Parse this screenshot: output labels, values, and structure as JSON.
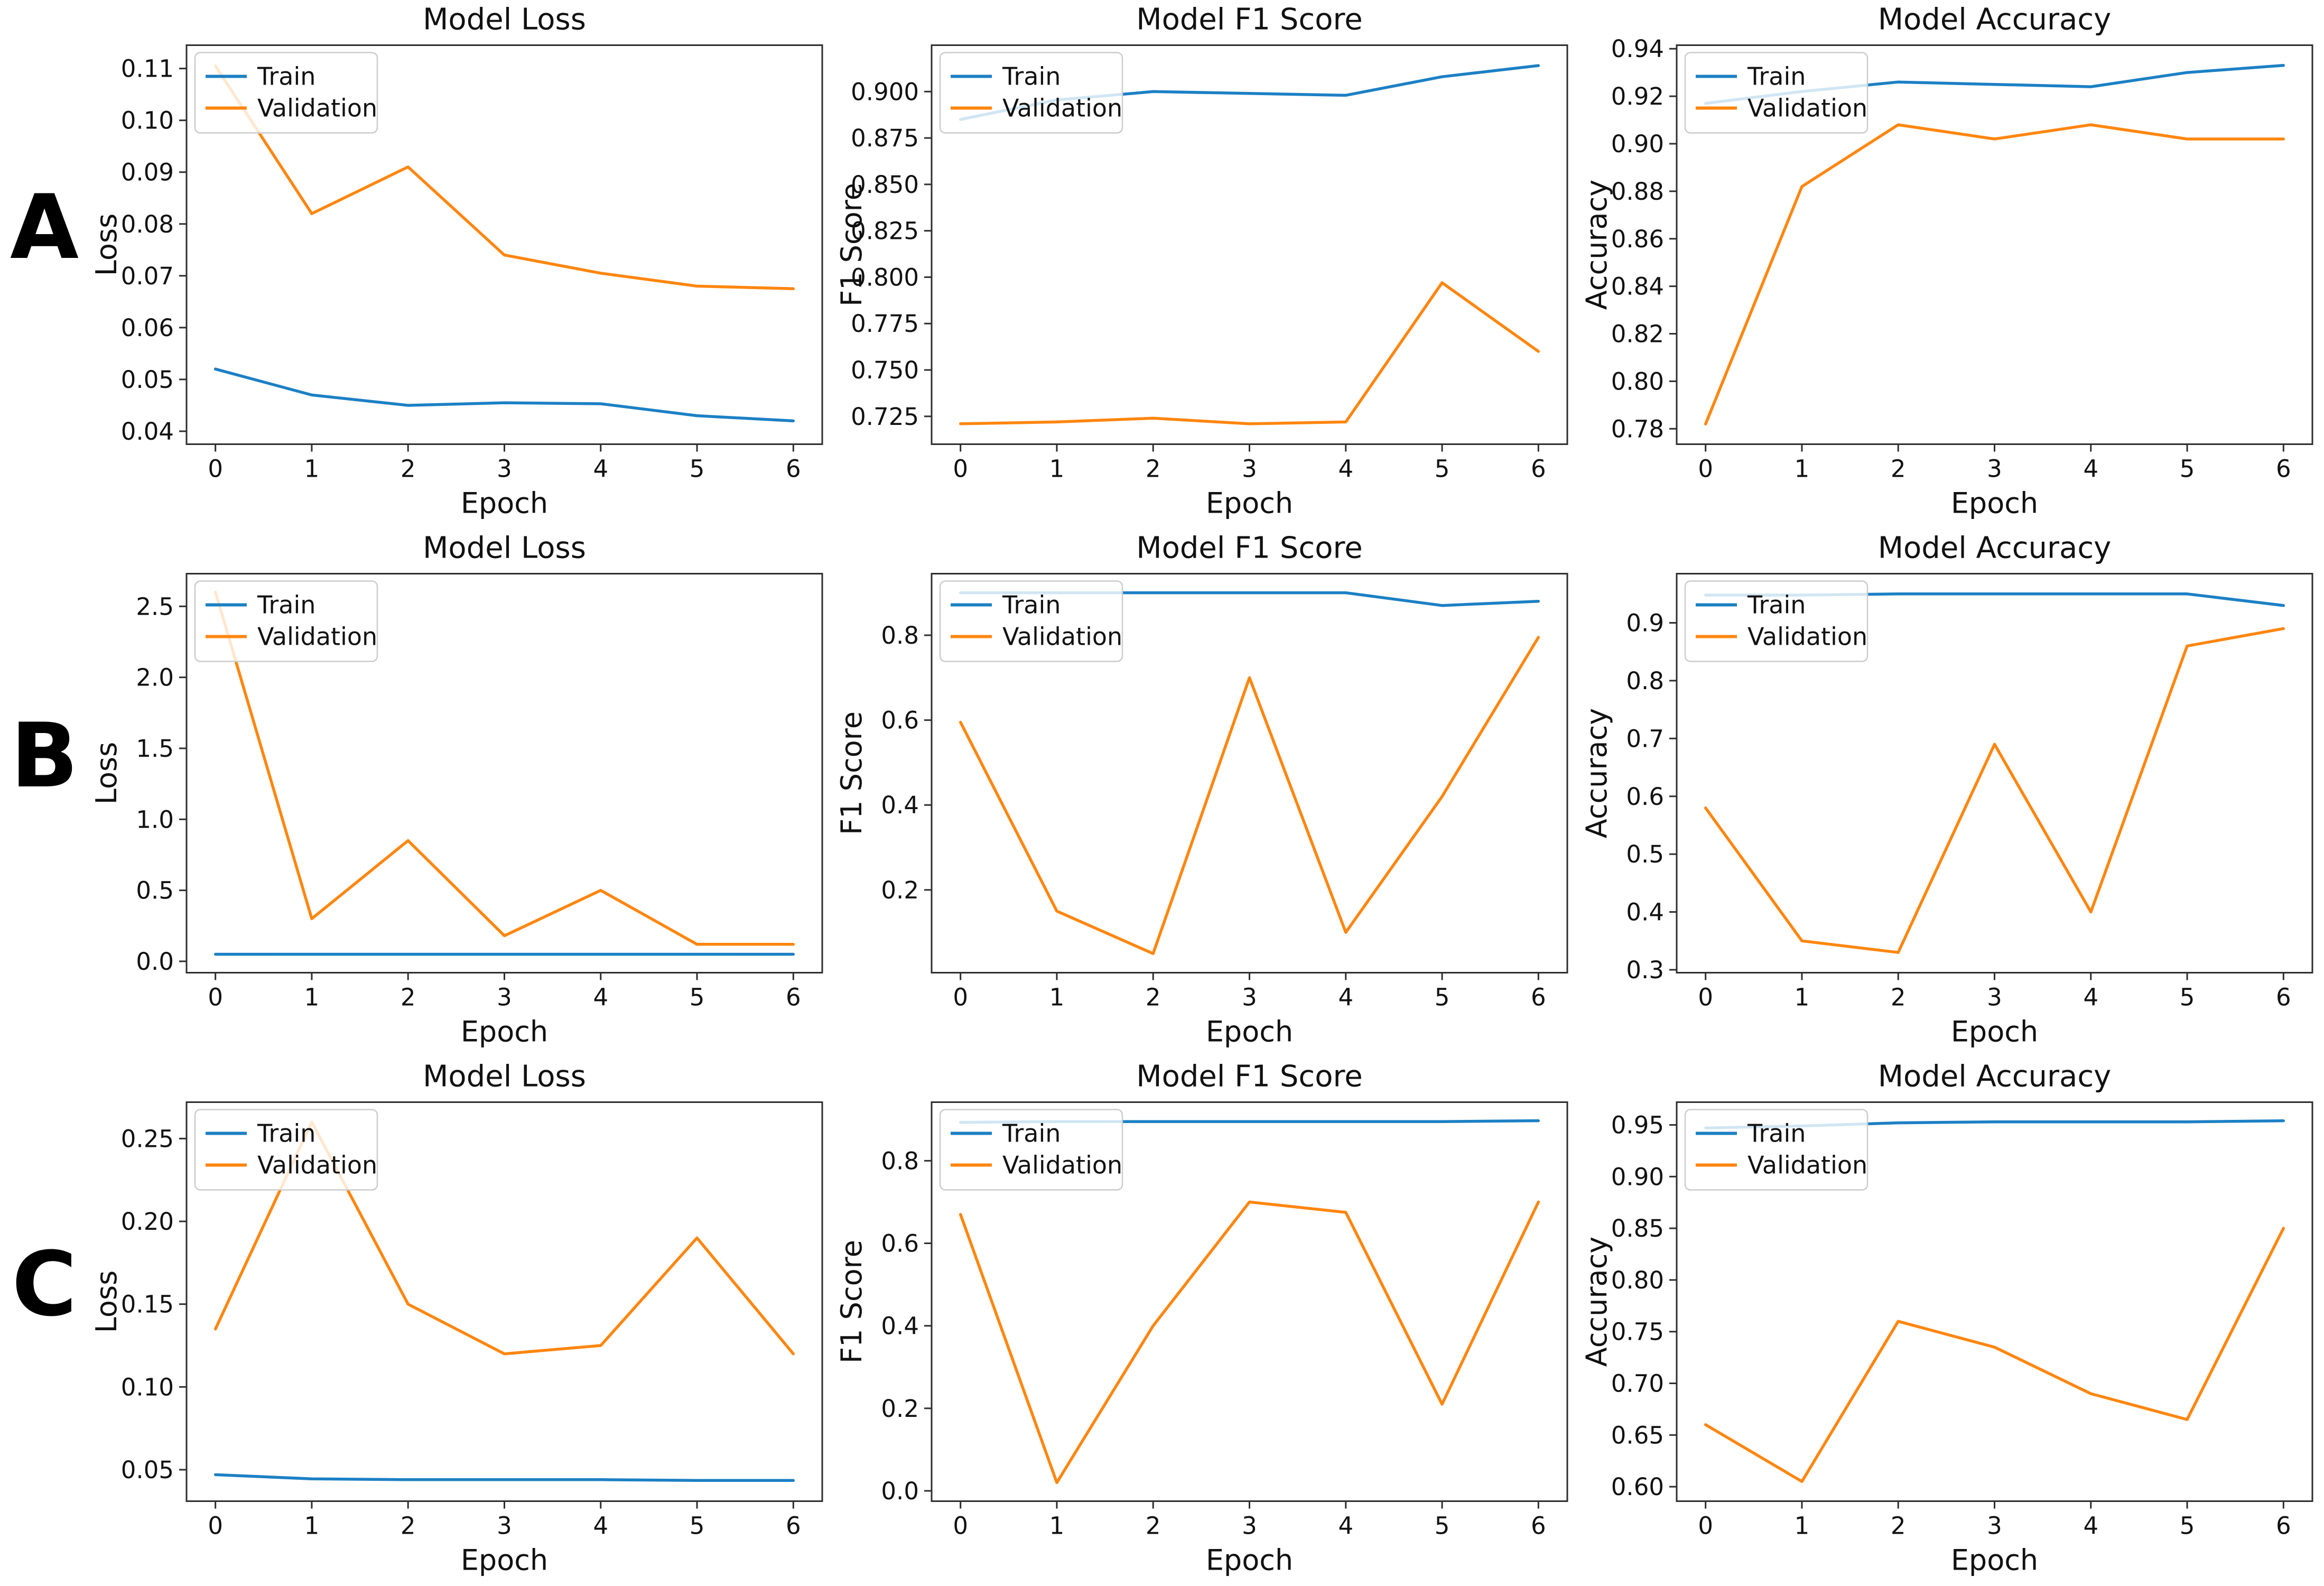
{
  "figure": {
    "row_labels": [
      "A",
      "B",
      "C"
    ],
    "colors": {
      "train": "#1c80c4",
      "validation": "#ff860f",
      "axis": "#2e2e2e",
      "text": "#111111",
      "legend_border": "#cccccc",
      "legend_fill": "rgba(255,255,255,0.8)"
    },
    "legend": {
      "position": "upper left",
      "labels": [
        "Train",
        "Validation"
      ]
    }
  },
  "chart_data": [
    {
      "type": "line",
      "row": "A",
      "title": "Model Loss",
      "xlabel": "Epoch",
      "ylabel": "Loss",
      "x": [
        0,
        1,
        2,
        3,
        4,
        5,
        6
      ],
      "xlim": [
        -0.3,
        6.3
      ],
      "xticks": [
        0,
        1,
        2,
        3,
        4,
        5,
        6
      ],
      "xtick_labels": [
        "0",
        "1",
        "2",
        "3",
        "4",
        "5",
        "6"
      ],
      "ylim": [
        0.0375,
        0.1145
      ],
      "yticks": [
        0.04,
        0.05,
        0.06,
        0.07,
        0.08,
        0.09,
        0.1,
        0.11
      ],
      "ytick_labels": [
        "0.04",
        "0.05",
        "0.06",
        "0.07",
        "0.08",
        "0.09",
        "0.10",
        "0.11"
      ],
      "grid": false,
      "legend_position": "upper left",
      "series": [
        {
          "name": "Train",
          "color_key": "train",
          "values": [
            0.052,
            0.047,
            0.045,
            0.0455,
            0.0453,
            0.043,
            0.042
          ]
        },
        {
          "name": "Validation",
          "color_key": "validation",
          "values": [
            0.1105,
            0.082,
            0.091,
            0.074,
            0.0705,
            0.068,
            0.0675
          ]
        }
      ]
    },
    {
      "type": "line",
      "row": "A",
      "title": "Model F1 Score",
      "xlabel": "Epoch",
      "ylabel": "F1 Score",
      "x": [
        0,
        1,
        2,
        3,
        4,
        5,
        6
      ],
      "xlim": [
        -0.3,
        6.3
      ],
      "xticks": [
        0,
        1,
        2,
        3,
        4,
        5,
        6
      ],
      "xtick_labels": [
        "0",
        "1",
        "2",
        "3",
        "4",
        "5",
        "6"
      ],
      "ylim": [
        0.71,
        0.925
      ],
      "yticks": [
        0.725,
        0.75,
        0.775,
        0.8,
        0.825,
        0.85,
        0.875,
        0.9
      ],
      "ytick_labels": [
        "0.725",
        "0.750",
        "0.775",
        "0.800",
        "0.825",
        "0.850",
        "0.875",
        "0.900"
      ],
      "grid": false,
      "legend_position": "upper left",
      "series": [
        {
          "name": "Train",
          "color_key": "train",
          "values": [
            0.885,
            0.8955,
            0.9,
            0.899,
            0.898,
            0.908,
            0.914
          ]
        },
        {
          "name": "Validation",
          "color_key": "validation",
          "values": [
            0.721,
            0.722,
            0.724,
            0.721,
            0.722,
            0.797,
            0.76
          ]
        }
      ]
    },
    {
      "type": "line",
      "row": "A",
      "title": "Model Accuracy",
      "xlabel": "Epoch",
      "ylabel": "Accuracy",
      "x": [
        0,
        1,
        2,
        3,
        4,
        5,
        6
      ],
      "xlim": [
        -0.3,
        6.3
      ],
      "xticks": [
        0,
        1,
        2,
        3,
        4,
        5,
        6
      ],
      "xtick_labels": [
        "0",
        "1",
        "2",
        "3",
        "4",
        "5",
        "6"
      ],
      "ylim": [
        0.7735,
        0.9415
      ],
      "yticks": [
        0.78,
        0.8,
        0.82,
        0.84,
        0.86,
        0.88,
        0.9,
        0.92,
        0.94
      ],
      "ytick_labels": [
        "0.78",
        "0.80",
        "0.82",
        "0.84",
        "0.86",
        "0.88",
        "0.90",
        "0.92",
        "0.94"
      ],
      "grid": false,
      "legend_position": "upper left",
      "series": [
        {
          "name": "Train",
          "color_key": "train",
          "values": [
            0.917,
            0.922,
            0.926,
            0.925,
            0.924,
            0.93,
            0.933
          ]
        },
        {
          "name": "Validation",
          "color_key": "validation",
          "values": [
            0.782,
            0.882,
            0.908,
            0.902,
            0.908,
            0.902,
            0.902
          ]
        }
      ]
    },
    {
      "type": "line",
      "row": "B",
      "title": "Model Loss",
      "xlabel": "Epoch",
      "ylabel": "Loss",
      "x": [
        0,
        1,
        2,
        3,
        4,
        5,
        6
      ],
      "xlim": [
        -0.3,
        6.3
      ],
      "xticks": [
        0,
        1,
        2,
        3,
        4,
        5,
        6
      ],
      "xtick_labels": [
        "0",
        "1",
        "2",
        "3",
        "4",
        "5",
        "6"
      ],
      "ylim": [
        -0.08,
        2.73
      ],
      "yticks": [
        0.0,
        0.5,
        1.0,
        1.5,
        2.0,
        2.5
      ],
      "ytick_labels": [
        "0.0",
        "0.5",
        "1.0",
        "1.5",
        "2.0",
        "2.5"
      ],
      "grid": false,
      "legend_position": "upper left",
      "series": [
        {
          "name": "Train",
          "color_key": "train",
          "values": [
            0.05,
            0.05,
            0.05,
            0.05,
            0.05,
            0.05,
            0.05
          ]
        },
        {
          "name": "Validation",
          "color_key": "validation",
          "values": [
            2.6,
            0.3,
            0.85,
            0.18,
            0.5,
            0.12,
            0.12
          ]
        }
      ]
    },
    {
      "type": "line",
      "row": "B",
      "title": "Model F1 Score",
      "xlabel": "Epoch",
      "ylabel": "F1 Score",
      "x": [
        0,
        1,
        2,
        3,
        4,
        5,
        6
      ],
      "xlim": [
        -0.3,
        6.3
      ],
      "xticks": [
        0,
        1,
        2,
        3,
        4,
        5,
        6
      ],
      "xtick_labels": [
        "0",
        "1",
        "2",
        "3",
        "4",
        "5",
        "6"
      ],
      "ylim": [
        0.005,
        0.945
      ],
      "yticks": [
        0.2,
        0.4,
        0.6,
        0.8
      ],
      "ytick_labels": [
        "0.2",
        "0.4",
        "0.6",
        "0.8"
      ],
      "grid": false,
      "legend_position": "upper left",
      "series": [
        {
          "name": "Train",
          "color_key": "train",
          "values": [
            0.9,
            0.9,
            0.9,
            0.9,
            0.9,
            0.87,
            0.88
          ]
        },
        {
          "name": "Validation",
          "color_key": "validation",
          "values": [
            0.595,
            0.15,
            0.05,
            0.7,
            0.1,
            0.42,
            0.795
          ]
        }
      ]
    },
    {
      "type": "line",
      "row": "B",
      "title": "Model Accuracy",
      "xlabel": "Epoch",
      "ylabel": "Accuracy",
      "x": [
        0,
        1,
        2,
        3,
        4,
        5,
        6
      ],
      "xlim": [
        -0.3,
        6.3
      ],
      "xticks": [
        0,
        1,
        2,
        3,
        4,
        5,
        6
      ],
      "xtick_labels": [
        "0",
        "1",
        "2",
        "3",
        "4",
        "5",
        "6"
      ],
      "ylim": [
        0.295,
        0.985
      ],
      "yticks": [
        0.3,
        0.4,
        0.5,
        0.6,
        0.7,
        0.8,
        0.9
      ],
      "ytick_labels": [
        "0.3",
        "0.4",
        "0.5",
        "0.6",
        "0.7",
        "0.8",
        "0.9"
      ],
      "grid": false,
      "legend_position": "upper left",
      "series": [
        {
          "name": "Train",
          "color_key": "train",
          "values": [
            0.948,
            0.948,
            0.95,
            0.95,
            0.95,
            0.95,
            0.93
          ]
        },
        {
          "name": "Validation",
          "color_key": "validation",
          "values": [
            0.58,
            0.35,
            0.33,
            0.69,
            0.4,
            0.86,
            0.89
          ]
        }
      ]
    },
    {
      "type": "line",
      "row": "C",
      "title": "Model Loss",
      "xlabel": "Epoch",
      "ylabel": "Loss",
      "x": [
        0,
        1,
        2,
        3,
        4,
        5,
        6
      ],
      "xlim": [
        -0.3,
        6.3
      ],
      "xticks": [
        0,
        1,
        2,
        3,
        4,
        5,
        6
      ],
      "xtick_labels": [
        "0",
        "1",
        "2",
        "3",
        "4",
        "5",
        "6"
      ],
      "ylim": [
        0.031,
        0.272
      ],
      "yticks": [
        0.05,
        0.1,
        0.15,
        0.2,
        0.25
      ],
      "ytick_labels": [
        "0.05",
        "0.10",
        "0.15",
        "0.20",
        "0.25"
      ],
      "grid": false,
      "legend_position": "upper left",
      "series": [
        {
          "name": "Train",
          "color_key": "train",
          "values": [
            0.047,
            0.0445,
            0.044,
            0.044,
            0.044,
            0.0435,
            0.0435
          ]
        },
        {
          "name": "Validation",
          "color_key": "validation",
          "values": [
            0.135,
            0.26,
            0.15,
            0.12,
            0.125,
            0.19,
            0.12
          ]
        }
      ]
    },
    {
      "type": "line",
      "row": "C",
      "title": "Model F1 Score",
      "xlabel": "Epoch",
      "ylabel": "F1 Score",
      "x": [
        0,
        1,
        2,
        3,
        4,
        5,
        6
      ],
      "xlim": [
        -0.3,
        6.3
      ],
      "xticks": [
        0,
        1,
        2,
        3,
        4,
        5,
        6
      ],
      "xtick_labels": [
        "0",
        "1",
        "2",
        "3",
        "4",
        "5",
        "6"
      ],
      "ylim": [
        -0.025,
        0.942
      ],
      "yticks": [
        0.0,
        0.2,
        0.4,
        0.6,
        0.8
      ],
      "ytick_labels": [
        "0.0",
        "0.2",
        "0.4",
        "0.6",
        "0.8"
      ],
      "grid": false,
      "legend_position": "upper left",
      "series": [
        {
          "name": "Train",
          "color_key": "train",
          "values": [
            0.893,
            0.895,
            0.895,
            0.895,
            0.895,
            0.895,
            0.897
          ]
        },
        {
          "name": "Validation",
          "color_key": "validation",
          "values": [
            0.67,
            0.02,
            0.4,
            0.7,
            0.675,
            0.21,
            0.7
          ]
        }
      ]
    },
    {
      "type": "line",
      "row": "C",
      "title": "Model Accuracy",
      "xlabel": "Epoch",
      "ylabel": "Accuracy",
      "x": [
        0,
        1,
        2,
        3,
        4,
        5,
        6
      ],
      "xlim": [
        -0.3,
        6.3
      ],
      "xticks": [
        0,
        1,
        2,
        3,
        4,
        5,
        6
      ],
      "xtick_labels": [
        "0",
        "1",
        "2",
        "3",
        "4",
        "5",
        "6"
      ],
      "ylim": [
        0.586,
        0.972
      ],
      "yticks": [
        0.6,
        0.65,
        0.7,
        0.75,
        0.8,
        0.85,
        0.9,
        0.95
      ],
      "ytick_labels": [
        "0.60",
        "0.65",
        "0.70",
        "0.75",
        "0.80",
        "0.85",
        "0.90",
        "0.95"
      ],
      "grid": false,
      "legend_position": "upper left",
      "series": [
        {
          "name": "Train",
          "color_key": "train",
          "values": [
            0.947,
            0.949,
            0.952,
            0.953,
            0.953,
            0.953,
            0.954
          ]
        },
        {
          "name": "Validation",
          "color_key": "validation",
          "values": [
            0.66,
            0.605,
            0.76,
            0.735,
            0.69,
            0.665,
            0.85
          ]
        }
      ]
    }
  ]
}
